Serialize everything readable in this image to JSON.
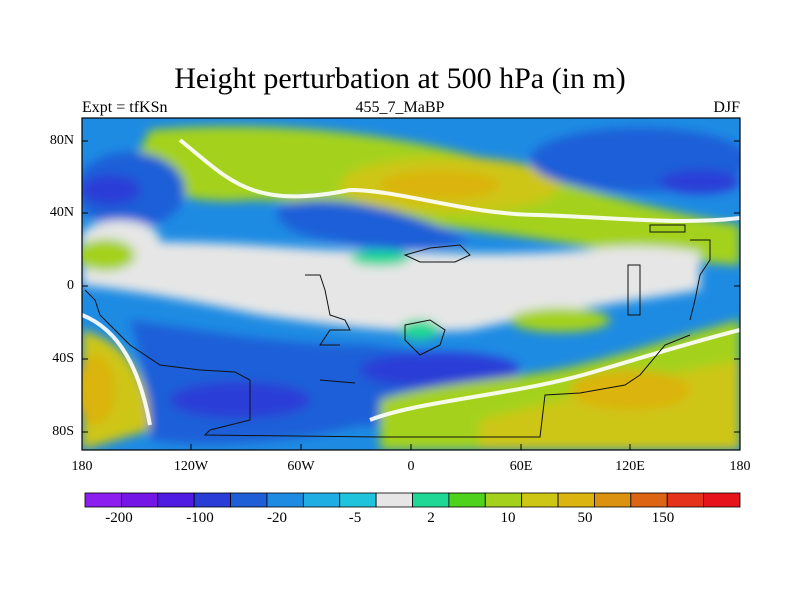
{
  "title": "Height perturbation at 500 hPa (in m)",
  "subtitle_left": "Expt = tfKSn",
  "subtitle_center": "455_7_MaBP",
  "subtitle_right": "DJF",
  "lat_labels": [
    "80N",
    "40N",
    "0",
    "40S",
    "80S"
  ],
  "lon_labels": [
    "180",
    "120W",
    "60W",
    "0",
    "60E",
    "120E",
    "180"
  ],
  "colorbar": {
    "colors": [
      "#8c1ef0",
      "#7316e6",
      "#4f1ce3",
      "#2a3ed7",
      "#1e5fd8",
      "#1e8be3",
      "#1faee3",
      "#20c3dc",
      "#e6e6e6",
      "#20d896",
      "#4fd21c",
      "#a4d21c",
      "#cdc614",
      "#dbb410",
      "#db9210",
      "#dc6412",
      "#e5321a",
      "#e6141a"
    ],
    "labels": [
      "-200",
      "-100",
      "-20",
      "-5",
      "2",
      "10",
      "50",
      "150"
    ]
  },
  "map": {
    "background_color": "#1e8be3"
  }
}
